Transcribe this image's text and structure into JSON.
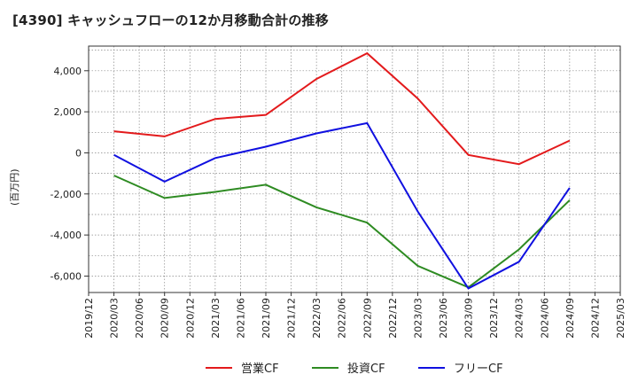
{
  "chart_data": {
    "type": "line",
    "title": "[4390]  キャッシュフローの12か月移動合計の推移",
    "ylabel": "(百万円)",
    "xlabel": "",
    "ylim": [
      -6800,
      5200
    ],
    "yticks": [
      4000,
      2000,
      0,
      -2000,
      -4000,
      -6000
    ],
    "ytick_labels": [
      "4,000",
      "2,000",
      "0",
      "-2,000",
      "-4,000",
      "-6,000"
    ],
    "x_tick_labels": [
      "2019/12",
      "2020/03",
      "2020/06",
      "2020/09",
      "2020/12",
      "2021/03",
      "2021/06",
      "2021/09",
      "2021/12",
      "2022/03",
      "2022/06",
      "2022/09",
      "2022/12",
      "2023/03",
      "2023/06",
      "2023/09",
      "2023/12",
      "2024/03",
      "2024/06",
      "2024/09",
      "2024/12",
      "2025/03"
    ],
    "grid": true,
    "legend_position": "bottom",
    "series": [
      {
        "name": "営業CF",
        "color": "#e31a1c",
        "x": [
          "2020/03",
          "2020/09",
          "2021/03",
          "2021/09",
          "2022/03",
          "2022/09",
          "2023/03",
          "2023/09",
          "2024/03",
          "2024/09"
        ],
        "values": [
          1050,
          800,
          1650,
          1850,
          3600,
          4850,
          2650,
          -100,
          -550,
          600
        ]
      },
      {
        "name": "投資CF",
        "color": "#2e8b22",
        "x": [
          "2020/03",
          "2020/09",
          "2021/03",
          "2021/09",
          "2022/03",
          "2022/09",
          "2023/03",
          "2023/09",
          "2024/03",
          "2024/09"
        ],
        "values": [
          -1100,
          -2200,
          -1900,
          -1550,
          -2650,
          -3400,
          -5500,
          -6550,
          -4700,
          -2300
        ]
      },
      {
        "name": "フリーCF",
        "color": "#1010e0",
        "x": [
          "2020/03",
          "2020/09",
          "2021/03",
          "2021/09",
          "2022/03",
          "2022/09",
          "2023/03",
          "2023/09",
          "2024/03",
          "2024/09"
        ],
        "values": [
          -100,
          -1400,
          -250,
          300,
          950,
          1450,
          -2850,
          -6600,
          -5300,
          -1700
        ]
      }
    ]
  }
}
